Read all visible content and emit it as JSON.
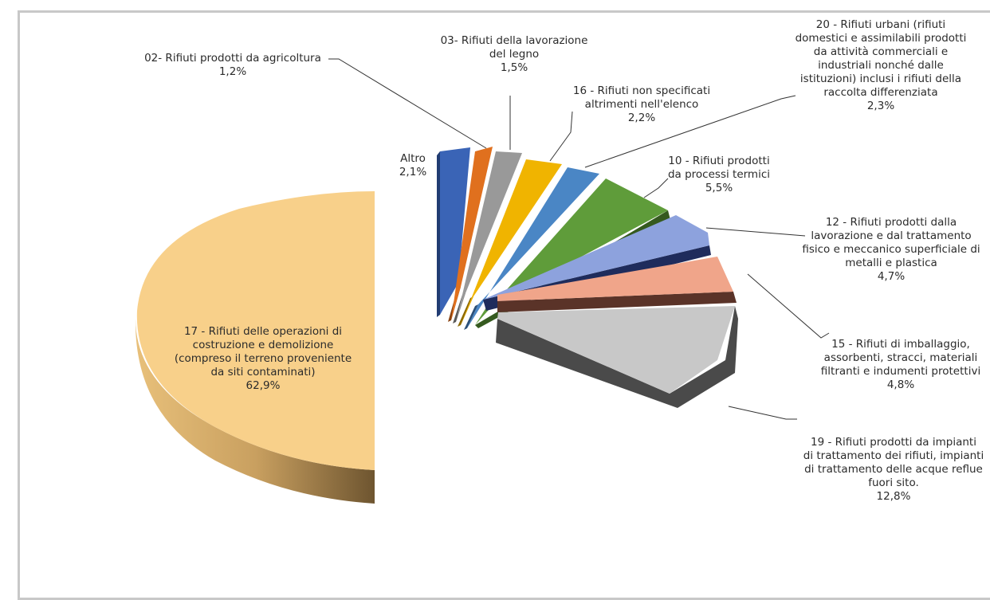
{
  "chart_data": {
    "type": "pie",
    "style": "3d-exploded",
    "slices": [
      {
        "id": "altro",
        "lines": [
          "Altro"
        ],
        "value_text": "2,1%",
        "value": 2.1,
        "top": "#3a64b6",
        "side": "#213c72"
      },
      {
        "id": "c02",
        "lines": [
          "02- Rifiuti prodotti da agricoltura"
        ],
        "value_text": "1,2%",
        "value": 1.2,
        "top": "#e0701e",
        "side": "#8a4311"
      },
      {
        "id": "c03",
        "lines": [
          "03- Rifiuti della lavorazione",
          "del legno"
        ],
        "value_text": "1,5%",
        "value": 1.5,
        "top": "#999999",
        "side": "#595959"
      },
      {
        "id": "c16",
        "lines": [
          "16 - Rifiuti non specificati",
          "altrimenti nell'elenco"
        ],
        "value_text": "2,2%",
        "value": 2.2,
        "top": "#f0b400",
        "side": "#8c6900"
      },
      {
        "id": "c20",
        "lines": [
          "20 - Rifiuti urbani (rifiuti",
          "domestici e assimilabili prodotti",
          "da attività commerciali e",
          "industriali nonché dalle",
          "istituzioni) inclusi i rifiuti della",
          "raccolta differenziata"
        ],
        "value_text": "2,3%",
        "value": 2.3,
        "top": "#4a86c5",
        "side": "#2a4f78"
      },
      {
        "id": "c10",
        "lines": [
          "10 - Rifiuti prodotti",
          "da processi termici"
        ],
        "value_text": "5,5%",
        "value": 5.5,
        "top": "#5f9c3a",
        "side": "#355a1f"
      },
      {
        "id": "c12",
        "lines": [
          "12 - Rifiuti prodotti dalla",
          "lavorazione e dal trattamento",
          "fisico e meccanico superficiale di",
          "metalli e plastica"
        ],
        "value_text": "4,7%",
        "value": 4.7,
        "top": "#8da2dd",
        "side": "#1f2c5c"
      },
      {
        "id": "c15",
        "lines": [
          "15 - Rifiuti di imballaggio,",
          "assorbenti, stracci, materiali",
          "filtranti e indumenti protettivi"
        ],
        "value_text": "4,8%",
        "value": 4.8,
        "top": "#f0a58a",
        "side": "#5a3328"
      },
      {
        "id": "c19",
        "lines": [
          "19 - Rifiuti prodotti da impianti",
          "di trattamento dei rifiuti, impianti",
          "di trattamento delle acque reflue",
          "fuori sito."
        ],
        "value_text": "12,8%",
        "value": 12.8,
        "top": "#c8c8c8",
        "side": "#4a4a4a"
      },
      {
        "id": "c17",
        "lines": [
          "17 - Rifiuti delle operazioni di",
          "costruzione e demolizione",
          "(compreso il terreno proveniente",
          "da siti contaminati)"
        ],
        "value_text": "62,9%",
        "value": 62.9,
        "top": "#f8d08a",
        "side": "#b08a4a"
      }
    ]
  }
}
